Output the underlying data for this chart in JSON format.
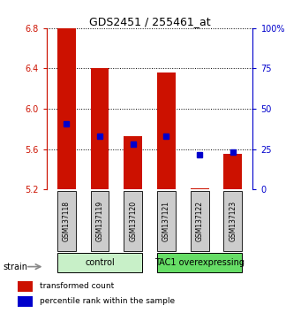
{
  "title": "GDS2451 / 255461_at",
  "samples": [
    "GSM137118",
    "GSM137119",
    "GSM137120",
    "GSM137121",
    "GSM137122",
    "GSM137123"
  ],
  "bar_bottoms": [
    5.2,
    5.2,
    5.2,
    5.2,
    5.2,
    5.2
  ],
  "bar_tops": [
    6.8,
    6.4,
    5.73,
    6.36,
    5.21,
    5.55
  ],
  "blue_y": [
    5.85,
    5.73,
    5.645,
    5.73,
    5.54,
    5.57
  ],
  "ylim_left": [
    5.2,
    6.8
  ],
  "yticks_left": [
    5.2,
    5.6,
    6.0,
    6.4,
    6.8
  ],
  "ylim_right": [
    0,
    100
  ],
  "yticks_right": [
    0,
    25,
    50,
    75,
    100
  ],
  "groups": [
    {
      "label": "control",
      "start": 0,
      "end": 3,
      "color": "#c8f0c8"
    },
    {
      "label": "TAC1 overexpressing",
      "start": 3,
      "end": 6,
      "color": "#66dd66"
    }
  ],
  "bar_color": "#cc1100",
  "blue_color": "#0000cc",
  "bar_width": 0.55,
  "background_color": "#ffffff",
  "legend_red_label": "transformed count",
  "legend_blue_label": "percentile rank within the sample",
  "strain_label": "strain",
  "left_axis_color": "#cc1100",
  "right_axis_color": "#0000cc",
  "sample_box_color": "#cccccc",
  "title_fontsize": 9,
  "tick_fontsize": 7,
  "label_fontsize": 5.5,
  "group_fontsize": 7,
  "legend_fontsize": 6.5
}
